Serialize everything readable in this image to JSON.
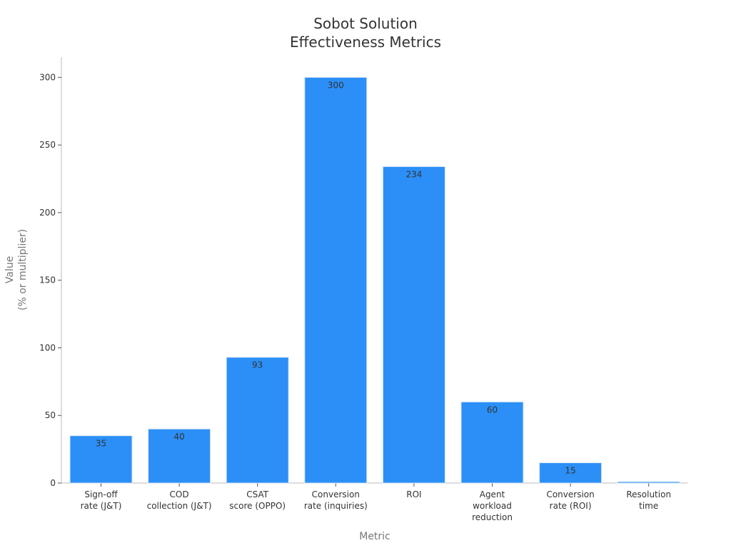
{
  "chart_data": {
    "type": "bar",
    "title_lines": [
      "Sobot Solution",
      "Effectiveness Metrics"
    ],
    "xlabel": "Metric",
    "ylabel_lines": [
      "Value",
      "(% or multiplier)"
    ],
    "ylim": [
      0,
      315
    ],
    "yticks": [
      0,
      50,
      100,
      150,
      200,
      250,
      300
    ],
    "grid": false,
    "categories": [
      [
        "Sign-off",
        "rate (J&T)"
      ],
      [
        "COD",
        "collection (J&T)"
      ],
      [
        "CSAT",
        "score (OPPO)"
      ],
      [
        "Conversion",
        "rate (inquiries)"
      ],
      [
        "ROI"
      ],
      [
        "Agent",
        "workload",
        "reduction"
      ],
      [
        "Conversion",
        "rate (ROI)"
      ],
      [
        "Resolution",
        "time"
      ]
    ],
    "values": [
      35,
      40,
      93,
      300,
      234,
      60,
      15,
      1
    ],
    "data_labels": [
      "35",
      "40",
      "93",
      "300",
      "234",
      "60",
      "15",
      ""
    ],
    "colors": {
      "bar": "#2b8ff7",
      "bar_edge": "#d6e6f5",
      "axis": "#bbbbbb",
      "text": "#333333"
    }
  }
}
